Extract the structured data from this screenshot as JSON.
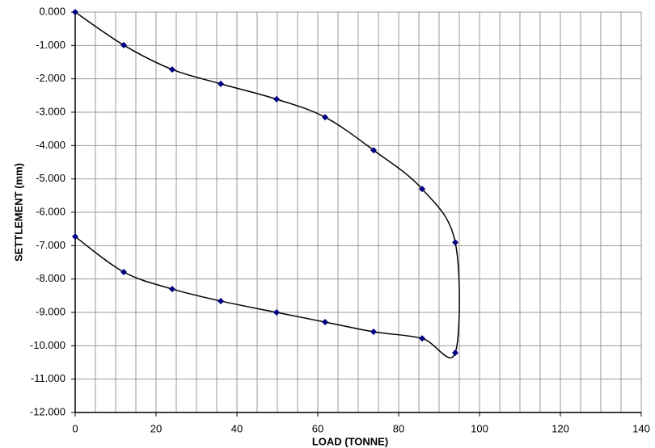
{
  "chart_data": {
    "type": "scatter-smooth",
    "x_label": "LOAD (TONNE)",
    "y_label": "SETTLEMENT (mm)",
    "x": [
      0,
      12,
      24,
      36,
      49.8,
      61.8,
      73.8,
      85.8,
      94,
      94,
      85.8,
      73.8,
      61.8,
      49.8,
      36,
      24,
      12,
      0
    ],
    "values": [
      0,
      -0.99,
      -1.72,
      -2.15,
      -2.61,
      -3.15,
      -4.14,
      -5.3,
      -6.9,
      -10.21,
      -9.78,
      -9.58,
      -9.29,
      -9.0,
      -8.66,
      -8.3,
      -7.79,
      -6.73
    ],
    "line_color": "#000000",
    "marker_color": "#000080",
    "xlim": [
      0,
      140
    ],
    "xticks": [
      0,
      20,
      40,
      60,
      80,
      100,
      120,
      140
    ],
    "xminorticks": [
      5,
      10,
      15,
      25,
      30,
      35,
      45,
      50,
      55,
      65,
      70,
      75,
      85,
      90,
      95,
      105,
      110,
      115,
      125,
      130,
      135
    ],
    "ylim": [
      -12,
      0
    ],
    "yticks": [
      {
        "value": 0,
        "label": "0.000"
      },
      {
        "value": -1,
        "label": "-1.000"
      },
      {
        "value": -2,
        "label": "-2.000"
      },
      {
        "value": -3,
        "label": "-3.000"
      },
      {
        "value": -4,
        "label": "-4.000"
      },
      {
        "value": -5,
        "label": "-5.000"
      },
      {
        "value": -6,
        "label": "-6.000"
      },
      {
        "value": -7,
        "label": "-7.000"
      },
      {
        "value": -8,
        "label": "-8.000"
      },
      {
        "value": -9,
        "label": "-9.000"
      },
      {
        "value": -10,
        "label": "-10.000"
      },
      {
        "value": -11,
        "label": "-11.000"
      },
      {
        "value": -12,
        "label": "-12.000"
      }
    ],
    "grid": true
  }
}
